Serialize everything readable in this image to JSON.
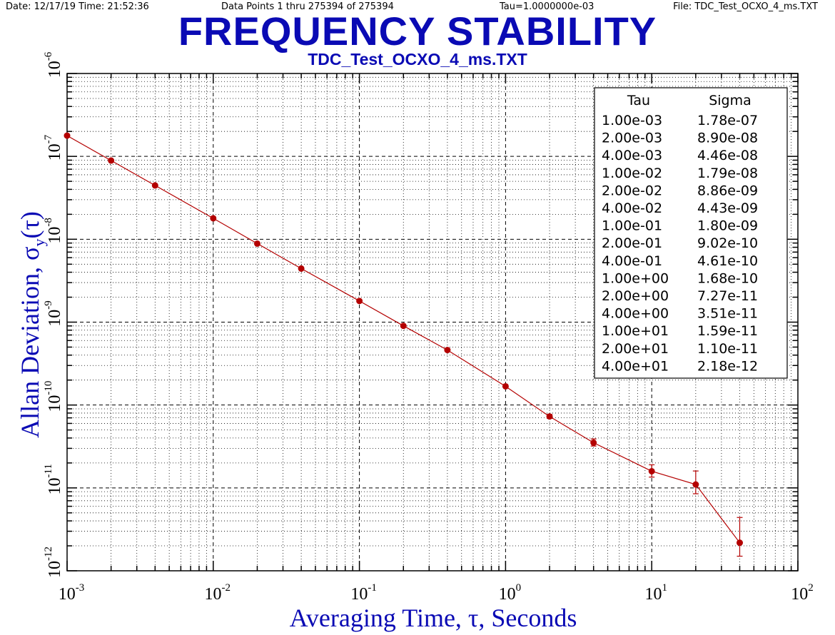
{
  "header": {
    "date_time": "Date: 12/17/19   Time: 21:52:36",
    "data_points": "Data Points 1 thru 275394 of 275394",
    "tau": "Tau=1.0000000e-03",
    "file": "File: TDC_Test_OCXO_4_ms.TXT"
  },
  "chart_data": {
    "type": "scatter",
    "title": "FREQUENCY STABILITY",
    "subtitle": "TDC_Test_OCXO_4_ms.TXT",
    "xlabel": "Averaging Time, τ, Seconds",
    "ylabel_main": "Allan Deviation, σ",
    "ylabel_sub": "y",
    "ylabel_tail": "(τ)",
    "x_scale": "log",
    "y_scale": "log",
    "xlim": [
      0.001,
      100
    ],
    "ylim": [
      1e-12,
      1e-06
    ],
    "grid": true,
    "x_ticks": [
      {
        "base": "10",
        "exp": "-3"
      },
      {
        "base": "10",
        "exp": "-2"
      },
      {
        "base": "10",
        "exp": "-1"
      },
      {
        "base": "10",
        "exp": "0"
      },
      {
        "base": "10",
        "exp": "1"
      },
      {
        "base": "10",
        "exp": "2"
      }
    ],
    "y_ticks": [
      {
        "base": "10",
        "exp": "-12"
      },
      {
        "base": "10",
        "exp": "-11"
      },
      {
        "base": "10",
        "exp": "-10"
      },
      {
        "base": "10",
        "exp": "-9"
      },
      {
        "base": "10",
        "exp": "-8"
      },
      {
        "base": "10",
        "exp": "-7"
      },
      {
        "base": "10",
        "exp": "-6"
      }
    ],
    "series": [
      {
        "x": [
          0.001,
          0.002,
          0.004,
          0.01,
          0.02,
          0.04,
          0.1,
          0.2,
          0.4,
          1,
          2,
          4,
          10,
          20,
          40
        ],
        "y": [
          1.78e-07,
          8.9e-08,
          4.46e-08,
          1.79e-08,
          8.86e-09,
          4.43e-09,
          1.8e-09,
          9.02e-10,
          4.61e-10,
          1.68e-10,
          7.27e-11,
          3.51e-11,
          1.59e-11,
          1.1e-11,
          2.18e-12
        ],
        "err_low": [
          null,
          null,
          null,
          null,
          null,
          null,
          null,
          null,
          null,
          null,
          6.9e-11,
          3.2e-11,
          1.35e-11,
          8.5e-12,
          1.5e-12
        ],
        "err_high": [
          null,
          null,
          null,
          null,
          null,
          null,
          null,
          null,
          null,
          null,
          7.7e-11,
          3.9e-11,
          1.9e-11,
          1.6e-11,
          4.4e-12
        ]
      }
    ],
    "table": {
      "headers": [
        "Tau",
        "Sigma"
      ],
      "rows": [
        [
          "1.00e-03",
          "1.78e-07"
        ],
        [
          "2.00e-03",
          "8.90e-08"
        ],
        [
          "4.00e-03",
          "4.46e-08"
        ],
        [
          "1.00e-02",
          "1.79e-08"
        ],
        [
          "2.00e-02",
          "8.86e-09"
        ],
        [
          "4.00e-02",
          "4.43e-09"
        ],
        [
          "1.00e-01",
          "1.80e-09"
        ],
        [
          "2.00e-01",
          "9.02e-10"
        ],
        [
          "4.00e-01",
          "4.61e-10"
        ],
        [
          "1.00e+00",
          "1.68e-10"
        ],
        [
          "2.00e+00",
          "7.27e-11"
        ],
        [
          "4.00e+00",
          "3.51e-11"
        ],
        [
          "1.00e+01",
          "1.59e-11"
        ],
        [
          "2.00e+01",
          "1.10e-11"
        ],
        [
          "4.00e+01",
          "2.18e-12"
        ]
      ]
    },
    "colors": {
      "title": "#0a0ab4",
      "series": "#b40000",
      "grid": "#000000"
    }
  }
}
